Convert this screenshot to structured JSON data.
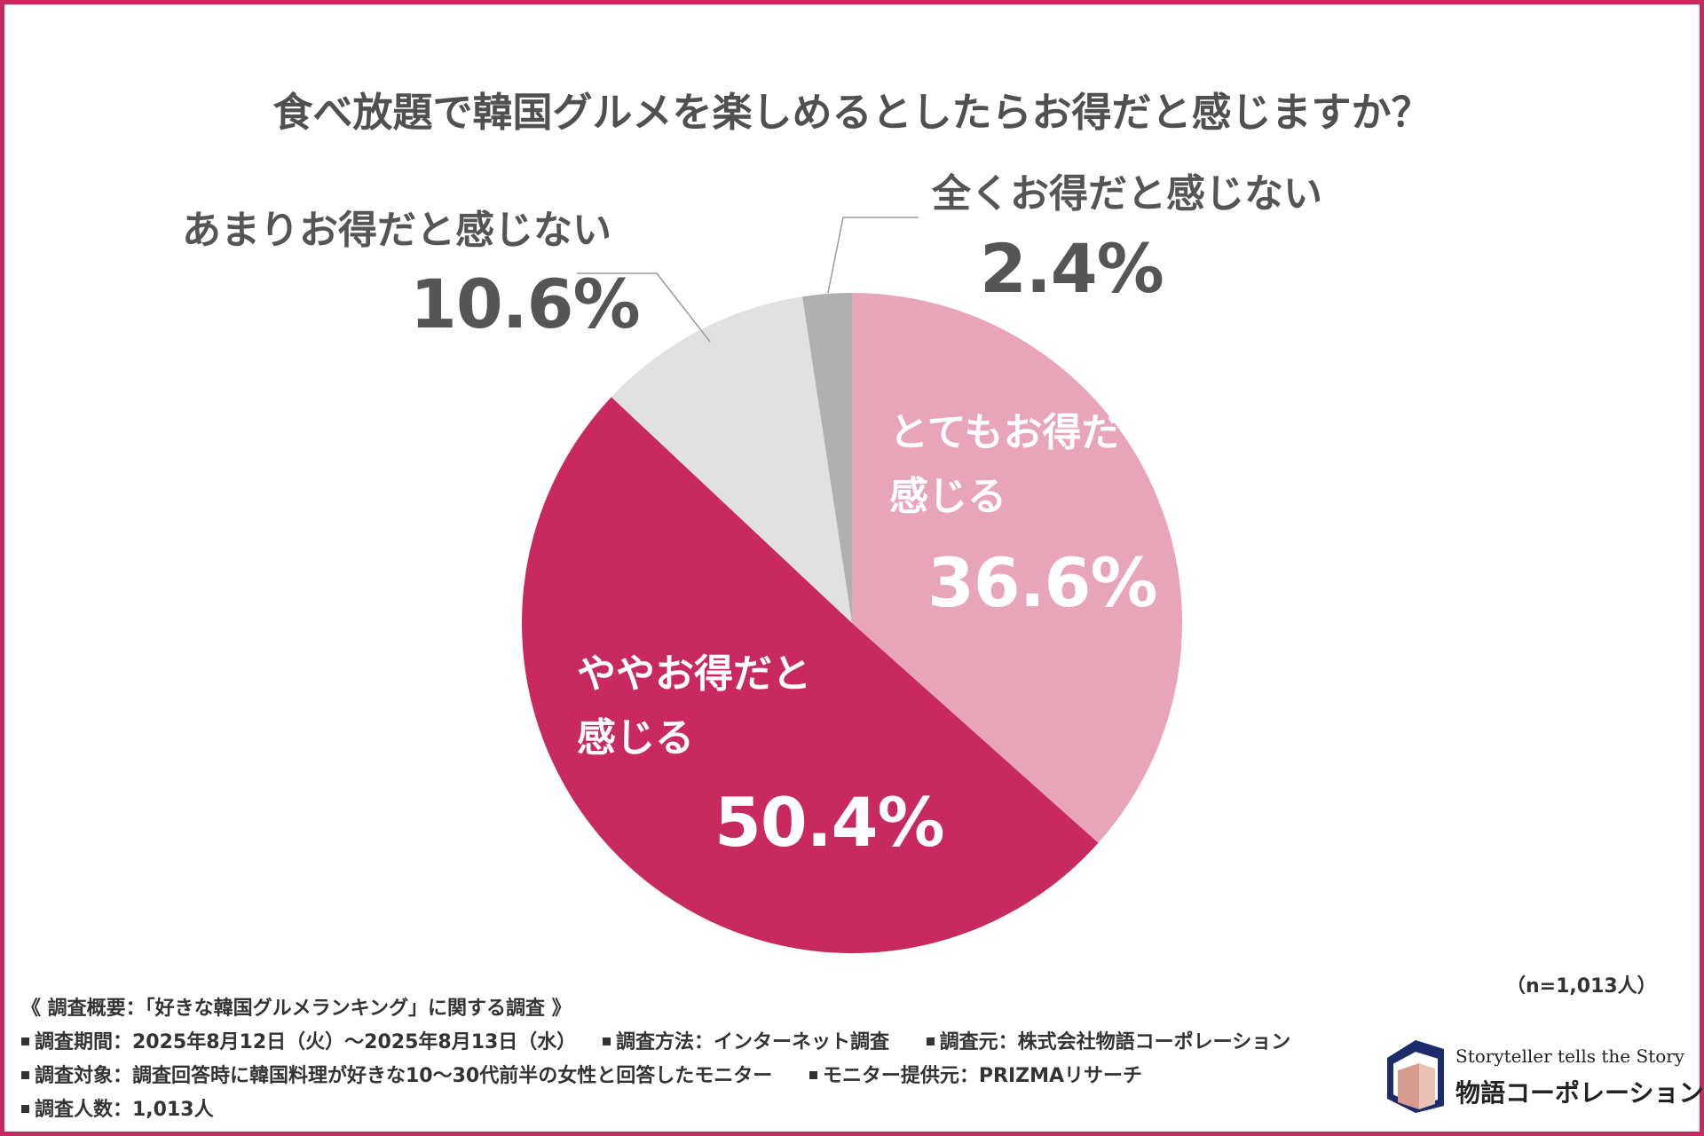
{
  "title": "食べ放題で韓国グルメを楽しめるとしたらお得だと感じますか？",
  "chart_data": {
    "type": "pie",
    "title": "食べ放題で韓国グルメを楽しめるとしたらお得だと感じますか？",
    "slices": [
      {
        "name": "とてもお得だと感じる",
        "line1": "とてもお得だと",
        "line2": "感じる",
        "value": 36.6,
        "label": "36.6%",
        "color": "#e8a5b9"
      },
      {
        "name": "ややお得だと感じる",
        "line1": "ややお得だと",
        "line2": "感じる",
        "value": 50.4,
        "label": "50.4%",
        "color": "#c8295f"
      },
      {
        "name": "あまりお得だと感じない",
        "value": 10.6,
        "label": "10.6%",
        "color": "#e1e1e1"
      },
      {
        "name": "全くお得だと感じない",
        "value": 2.4,
        "label": "2.4%",
        "color": "#b0b0b0"
      }
    ],
    "start": "top",
    "direction": "clockwise"
  },
  "sample_note": "（n=1,013人）",
  "survey": {
    "heading": "《 調査概要：「好きな韓国グルメランキング」に関する調査 》",
    "period": "調査期間：2025年8月12日（火）～2025年8月13日（水）",
    "method": "調査方法：インターネット調査",
    "source": "調査元：株式会社物語コーポレーション",
    "target": "調査対象：調査回答時に韓国料理が好きな10～30代前半の女性と回答したモニター",
    "provider": "モニター提供元：PRIZMAリサーチ",
    "count": "調査人数：1,013人"
  },
  "logo": {
    "tagline": "Storyteller tells the Story",
    "name": "物語コーポレーション"
  },
  "colors": {
    "frame": "#c8295f",
    "text": "#555555"
  }
}
